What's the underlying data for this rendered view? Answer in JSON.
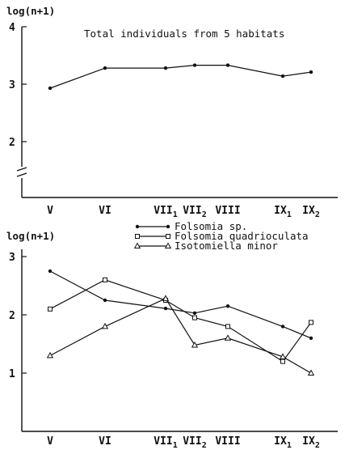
{
  "chart_data": [
    {
      "type": "line",
      "title": "Total individuals from 5 habitats",
      "ylabel": "log(n+1)",
      "xlabel": "",
      "categories": [
        "V",
        "VI",
        "VII1",
        "VII2",
        "VIII",
        "IX1",
        "IX2"
      ],
      "category_labels": [
        {
          "main": "V",
          "sub": ""
        },
        {
          "main": "VI",
          "sub": ""
        },
        {
          "main": "VII",
          "sub": "1"
        },
        {
          "main": "VII",
          "sub": "2"
        },
        {
          "main": "VIII",
          "sub": ""
        },
        {
          "main": "IX",
          "sub": "1"
        },
        {
          "main": "IX",
          "sub": "2"
        }
      ],
      "yticks": [
        "2",
        "3",
        "4"
      ],
      "ylim": [
        1.3,
        4
      ],
      "axis_break": true,
      "grid": false,
      "series": [
        {
          "marker": "dot",
          "values": [
            2.93,
            3.28,
            3.28,
            3.33,
            3.33,
            3.14,
            3.21
          ]
        }
      ]
    },
    {
      "type": "line",
      "title": "",
      "ylabel": "log(n+1)",
      "xlabel": "",
      "categories": [
        "V",
        "VI",
        "VII1",
        "VII2",
        "VIII",
        "IX1",
        "IX2"
      ],
      "category_labels": [
        {
          "main": "V",
          "sub": ""
        },
        {
          "main": "VI",
          "sub": ""
        },
        {
          "main": "VII",
          "sub": "1"
        },
        {
          "main": "VII",
          "sub": "2"
        },
        {
          "main": "VIII",
          "sub": ""
        },
        {
          "main": "IX",
          "sub": "1"
        },
        {
          "main": "IX",
          "sub": "2"
        }
      ],
      "yticks": [
        "1",
        "2",
        "3"
      ],
      "ylim": [
        0,
        3.2
      ],
      "grid": false,
      "legend_position": "top",
      "series": [
        {
          "name": "Folsomia sp.",
          "marker": "dot",
          "values": [
            2.75,
            2.25,
            2.11,
            2.03,
            2.15,
            1.8,
            1.6
          ]
        },
        {
          "name": "Folsomia quadrioculata",
          "marker": "square",
          "values": [
            2.1,
            2.6,
            2.25,
            1.95,
            1.8,
            1.2,
            1.87
          ]
        },
        {
          "name": "Isotomiella minor",
          "marker": "triangle",
          "values": [
            1.3,
            1.8,
            2.28,
            1.48,
            1.6,
            1.28,
            1.0
          ]
        }
      ]
    }
  ]
}
